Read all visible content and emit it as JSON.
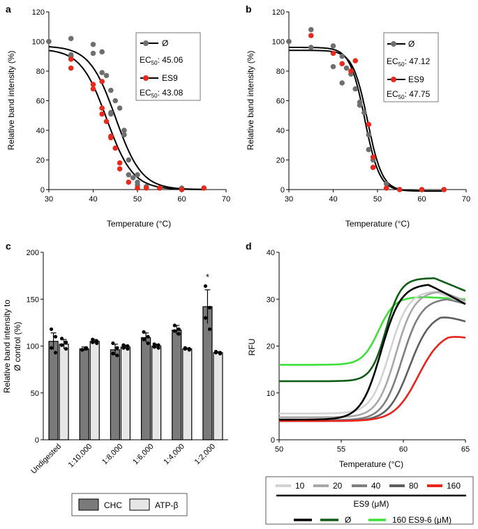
{
  "chart_data": [
    {
      "panel": "a",
      "type": "scatter",
      "xlabel": "Temperature (°C)",
      "ylabel": "Relative band intensity (%)",
      "xlim": [
        30,
        70
      ],
      "ylim": [
        0,
        120
      ],
      "xticks": [
        30,
        40,
        50,
        60,
        70
      ],
      "yticks": [
        0,
        20,
        40,
        60,
        80,
        100,
        120
      ],
      "xtick_labels": [
        "30",
        "40",
        "50",
        "60",
        "70"
      ],
      "ytick_labels": [
        "0",
        "20",
        "40",
        "60",
        "80",
        "100",
        "120"
      ],
      "series": [
        {
          "name": "Ø",
          "color": "#6e6e6e",
          "ec50_label": "EC",
          "ec50_sub": "50",
          "ec50_value": ": 45.06",
          "fit": {
            "top": 97,
            "bottom": 0,
            "ec50": 45.06,
            "slope": 0.34
          },
          "points": [
            [
              30,
              100
            ],
            [
              35,
              102
            ],
            [
              35,
              91
            ],
            [
              35,
              90
            ],
            [
              40,
              98
            ],
            [
              40,
              92
            ],
            [
              42,
              93
            ],
            [
              42,
              79
            ],
            [
              43,
              77
            ],
            [
              44,
              67
            ],
            [
              44,
              52
            ],
            [
              44,
              51
            ],
            [
              45,
              60
            ],
            [
              46,
              55
            ],
            [
              47,
              40
            ],
            [
              47,
              37
            ],
            [
              48,
              20
            ],
            [
              48,
              10
            ],
            [
              49,
              8
            ],
            [
              50,
              10
            ],
            [
              50,
              5
            ],
            [
              50,
              3
            ],
            [
              52,
              2
            ],
            [
              55,
              1
            ],
            [
              60,
              1
            ],
            [
              60,
              0
            ],
            [
              65,
              1
            ]
          ]
        },
        {
          "name": "ES9",
          "color": "#e8291c",
          "ec50_label": "EC",
          "ec50_sub": "50",
          "ec50_value": ": 43.08",
          "fit": {
            "top": 95,
            "bottom": 0,
            "ec50": 43.08,
            "slope": 0.34
          },
          "points": [
            [
              35,
              88
            ],
            [
              35,
              82
            ],
            [
              40,
              71
            ],
            [
              40,
              68
            ],
            [
              42,
              73
            ],
            [
              42,
              55
            ],
            [
              42,
              51
            ],
            [
              43,
              46
            ],
            [
              44,
              36
            ],
            [
              44,
              35
            ],
            [
              45,
              28
            ],
            [
              46,
              18
            ],
            [
              46,
              14
            ],
            [
              48,
              5
            ],
            [
              50,
              1
            ],
            [
              52,
              1
            ],
            [
              55,
              1
            ],
            [
              60,
              0
            ],
            [
              65,
              1
            ]
          ]
        }
      ]
    },
    {
      "panel": "b",
      "type": "scatter",
      "xlabel": "Temperature (°C)",
      "ylabel": "Relative band intensity (%)",
      "xlim": [
        30,
        70
      ],
      "ylim": [
        0,
        120
      ],
      "xticks": [
        30,
        40,
        50,
        60,
        70
      ],
      "yticks": [
        0,
        20,
        40,
        60,
        80,
        100,
        120
      ],
      "xtick_labels": [
        "30",
        "40",
        "50",
        "60",
        "70"
      ],
      "ytick_labels": [
        "0",
        "20",
        "40",
        "60",
        "80",
        "100",
        "120"
      ],
      "series": [
        {
          "name": "Ø",
          "color": "#6e6e6e",
          "ec50_label": "EC",
          "ec50_sub": "50",
          "ec50_value": ": 47.12",
          "fit": {
            "top": 96,
            "bottom": -1,
            "ec50": 47.12,
            "slope": 0.6
          },
          "points": [
            [
              30,
              100
            ],
            [
              35,
              108
            ],
            [
              35,
              96
            ],
            [
              40,
              97
            ],
            [
              40,
              83
            ],
            [
              42,
              90
            ],
            [
              42,
              72
            ],
            [
              43,
              82
            ],
            [
              44,
              78
            ],
            [
              45,
              68
            ],
            [
              46,
              59
            ],
            [
              46,
              57
            ],
            [
              47,
              52
            ],
            [
              48,
              37
            ],
            [
              48,
              27
            ],
            [
              49,
              20
            ],
            [
              49,
              15
            ],
            [
              52,
              4
            ],
            [
              52,
              1
            ],
            [
              55,
              0
            ],
            [
              60,
              0
            ],
            [
              65,
              0
            ]
          ]
        },
        {
          "name": "ES9",
          "color": "#e8291c",
          "ec50_label": "EC",
          "ec50_sub": "50",
          "ec50_value": ": 47.75",
          "fit": {
            "top": 94,
            "bottom": -1,
            "ec50": 47.75,
            "slope": 0.6
          },
          "points": [
            [
              35,
              104
            ],
            [
              40,
              92
            ],
            [
              42,
              85
            ],
            [
              44,
              80
            ],
            [
              45,
              87
            ],
            [
              48,
              44
            ],
            [
              49,
              22
            ],
            [
              49,
              15
            ],
            [
              52,
              1
            ],
            [
              55,
              0
            ],
            [
              60,
              0
            ],
            [
              65,
              0
            ]
          ]
        }
      ]
    },
    {
      "panel": "c",
      "type": "bar",
      "xlabel": "",
      "ylabel_line1": "Relative band intensity to",
      "ylabel_line2": "Ø control (%)",
      "ylim": [
        0,
        200
      ],
      "yticks": [
        0,
        50,
        100,
        150,
        200
      ],
      "ytick_labels": [
        "0",
        "50",
        "100",
        "150",
        "200"
      ],
      "categories": [
        "Undigested",
        "1:10,000",
        "1:8,000",
        "1:6,000",
        "1:4,000",
        "1:2,000"
      ],
      "series": [
        {
          "name": "CHC",
          "color": "#7a7a7a",
          "values": [
            105,
            97,
            96,
            109,
            117,
            142
          ],
          "errors": [
            9,
            2,
            6,
            5,
            5,
            18
          ],
          "points": [
            [
              118,
              110,
              98,
              93
            ],
            [
              96,
              97,
              96,
              98
            ],
            [
              103,
              98,
              92,
              90
            ],
            [
              115,
              110,
              107,
              103
            ],
            [
              122,
              118,
              116,
              113
            ],
            [
              164,
              141,
              130,
              118
            ]
          ]
        },
        {
          "name": "ATP-β",
          "color": "#e6e6e6",
          "values": [
            102,
            105,
            99,
            100,
            97,
            93
          ],
          "errors": [
            5,
            2,
            2,
            2,
            1,
            1
          ],
          "points": [
            [
              108,
              104,
              101,
              97
            ],
            [
              107,
              105,
              104,
              103
            ],
            [
              101,
              100,
              98,
              97
            ],
            [
              102,
              101,
              99,
              98
            ],
            [
              98,
              97,
              97,
              96
            ],
            [
              94,
              93,
              93,
              92
            ]
          ]
        }
      ],
      "annotation": {
        "category": "1:2,000",
        "text": "*"
      }
    },
    {
      "panel": "d",
      "type": "line",
      "xlabel": "Temperature (°C)",
      "ylabel": "RFU",
      "xlim": [
        50,
        65
      ],
      "ylim": [
        0,
        40
      ],
      "xticks": [
        50,
        55,
        60,
        65
      ],
      "yticks": [
        0,
        10,
        20,
        30,
        40
      ],
      "xtick_labels": [
        "50",
        "55",
        "60",
        "65"
      ],
      "ytick_labels": [
        "0",
        "10",
        "20",
        "30",
        "40"
      ],
      "series": [
        {
          "name": "10",
          "color": "#d3d3d3",
          "base": 5.6,
          "amp": 26.2,
          "tm": 58.9,
          "k": 0.75,
          "decay": 0.08,
          "peak": 62.5
        },
        {
          "name": "20",
          "color": "#a8a8a8",
          "base": 4.8,
          "amp": 27.0,
          "tm": 59.4,
          "k": 0.75,
          "decay": 0.08,
          "peak": 63.0
        },
        {
          "name": "40",
          "color": "#7f7f7f",
          "base": 4.2,
          "amp": 26.0,
          "tm": 59.9,
          "k": 0.78,
          "decay": 0.06,
          "peak": 63.5
        },
        {
          "name": "80",
          "color": "#5e5e5e",
          "base": 4.0,
          "amp": 23.2,
          "tm": 60.5,
          "k": 0.85,
          "decay": 0.08,
          "peak": 63.0
        },
        {
          "name": "160",
          "color": "#e8241c",
          "base": 4.0,
          "amp": 19.2,
          "tm": 61.2,
          "k": 0.95,
          "decay": 0.08,
          "peak": 63.6
        },
        {
          "name": "Ø",
          "color": "#000000",
          "base": 4.3,
          "amp": 29.0,
          "tm": 58.2,
          "k": 0.8,
          "decay": 0.1,
          "peak": 62.0
        },
        {
          "name": "Ø ES9-6",
          "color": "#0f5d16",
          "base": 12.5,
          "amp": 22.0,
          "tm": 58.6,
          "k": 0.6,
          "decay": 0.1,
          "peak": 62.5
        },
        {
          "name": "160 ES9-6",
          "color": "#3fe03a",
          "base": 16.0,
          "amp": 14.5,
          "tm": 58.0,
          "k": 0.65,
          "decay": 0.02,
          "peak": 61.5
        }
      ]
    }
  ],
  "panel_labels": {
    "a": "a",
    "b": "b",
    "c": "c",
    "d": "d"
  },
  "legend_c": {
    "chc": "CHC",
    "atp": "ATP-β"
  },
  "legend_d": {
    "row1": [
      "10",
      "20",
      "40",
      "80",
      "160"
    ],
    "es9_label": "ES9 (μM)",
    "row2_zero": "Ø",
    "row2_es96": "160 ES9-6 (μM)"
  }
}
